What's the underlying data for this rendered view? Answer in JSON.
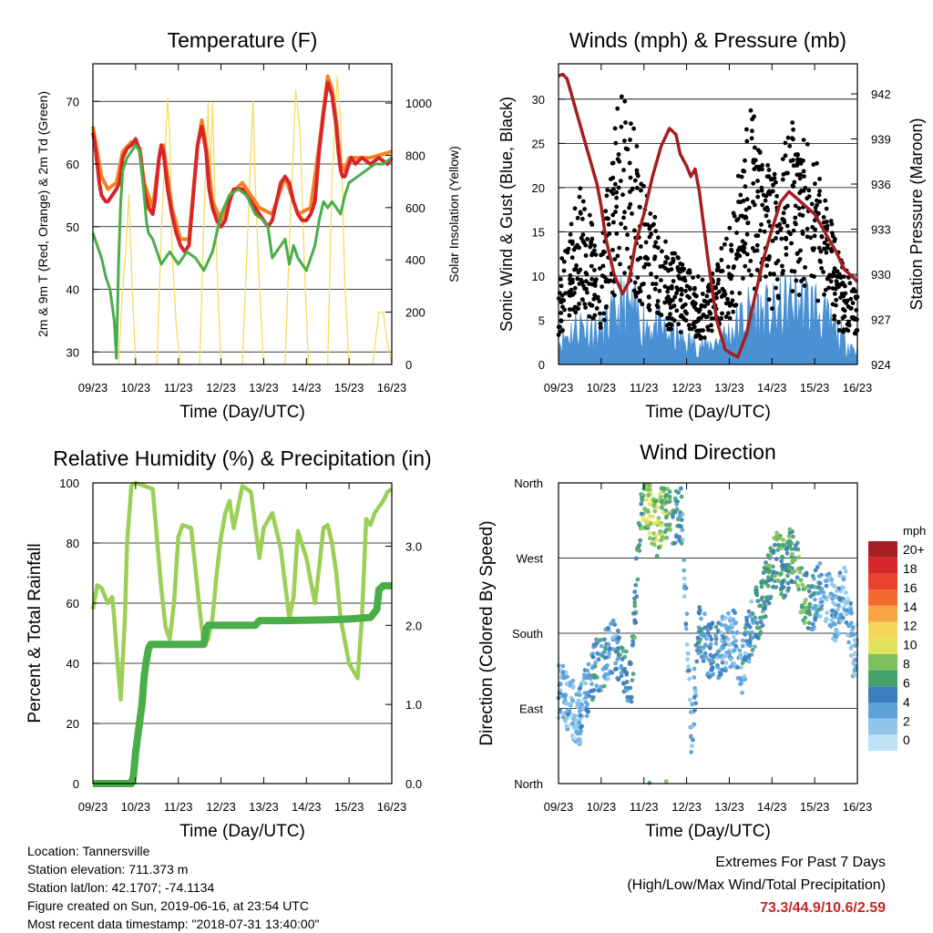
{
  "x_ticks": [
    "09/23",
    "10/23",
    "11/23",
    "12/23",
    "13/23",
    "14/23",
    "15/23",
    "16/23"
  ],
  "chart_data": [
    {
      "type": "line",
      "title": "Temperature (F)",
      "xlabel": "Time (Day/UTC)",
      "ylabel": "2m & 9m T (Red, Orange) & 2m Td (Green)",
      "y2label": "Solar Insolation (Yellow)",
      "ylim": [
        28,
        76
      ],
      "yticks": [
        30,
        40,
        50,
        60,
        70
      ],
      "y2lim": [
        0,
        1150
      ],
      "y2ticks": [
        0,
        200,
        400,
        600,
        800,
        1000
      ],
      "grid": true,
      "series": [
        {
          "name": "2m T",
          "color": "#d7262a",
          "axis": "left",
          "x": [
            0,
            0.05,
            0.1,
            0.15,
            0.2,
            0.25,
            0.3,
            0.35,
            0.45,
            0.55,
            0.62,
            0.7,
            0.8,
            0.9,
            1.0,
            1.1,
            1.2,
            1.3,
            1.4,
            1.45,
            1.55,
            1.6,
            1.65,
            1.75,
            1.85,
            1.95,
            2.05,
            2.15,
            2.25,
            2.35,
            2.45,
            2.55,
            2.65,
            2.72,
            2.8,
            2.9,
            3.0,
            3.1,
            3.2,
            3.3,
            3.5,
            3.7,
            3.9,
            4.1,
            4.2,
            4.3,
            4.4,
            4.5,
            4.6,
            4.7,
            4.8,
            4.9,
            5.0,
            5.1,
            5.2,
            5.3,
            5.4,
            5.5,
            5.6,
            5.7,
            5.75,
            5.8,
            5.85,
            5.9,
            5.95,
            6.0,
            6.05,
            6.15,
            6.3,
            6.5,
            6.7,
            6.9,
            7.0
          ],
          "y": [
            65,
            63,
            60,
            57,
            55,
            54.5,
            54,
            54,
            55,
            56,
            57,
            61,
            62.5,
            63,
            64,
            62,
            56,
            53,
            52,
            54,
            61,
            63,
            62,
            56,
            52,
            49,
            47,
            46,
            47,
            55,
            63,
            66,
            62,
            56,
            53,
            51,
            50,
            51,
            54,
            56,
            56,
            54,
            52,
            50,
            51,
            54,
            57,
            58,
            57,
            54,
            52,
            51,
            51,
            52,
            54,
            62,
            68,
            73,
            71,
            66,
            62,
            59,
            58,
            58,
            59,
            60,
            61,
            60,
            61,
            60,
            61,
            60,
            61
          ]
        },
        {
          "name": "9m T",
          "color": "#f7811f",
          "axis": "left",
          "x": [
            0,
            0.2,
            0.35,
            0.55,
            0.7,
            0.9,
            1.1,
            1.2,
            1.4,
            1.55,
            1.65,
            1.85,
            2.05,
            2.25,
            2.45,
            2.55,
            2.65,
            2.8,
            3.0,
            3.2,
            3.5,
            3.9,
            4.2,
            4.5,
            4.8,
            5.1,
            5.3,
            5.5,
            5.6,
            5.7,
            5.8,
            5.9,
            6.0,
            6.15,
            6.5,
            7.0
          ],
          "y": [
            66,
            58,
            56,
            57,
            62,
            63.5,
            62.5,
            57,
            53,
            61,
            63,
            53,
            48,
            48,
            63,
            67,
            63,
            54,
            51,
            55,
            57,
            53,
            52,
            58,
            52,
            53,
            63,
            74,
            72,
            67,
            60,
            59,
            61,
            61,
            61,
            62
          ]
        },
        {
          "name": "2m Td",
          "color": "#49ad48",
          "axis": "left",
          "x": [
            0,
            0.1,
            0.2,
            0.3,
            0.4,
            0.5,
            0.55,
            0.6,
            0.65,
            0.7,
            0.8,
            0.9,
            1.0,
            1.1,
            1.2,
            1.25,
            1.3,
            1.4,
            1.5,
            1.6,
            1.7,
            1.8,
            2.0,
            2.2,
            2.4,
            2.6,
            2.8,
            3.0,
            3.2,
            3.4,
            3.6,
            3.8,
            4.0,
            4.1,
            4.2,
            4.3,
            4.4,
            4.5,
            4.6,
            4.7,
            4.8,
            5.0,
            5.2,
            5.3,
            5.4,
            5.5,
            5.6,
            5.7,
            5.8,
            5.9,
            6.0,
            6.2,
            6.4,
            6.6,
            6.8,
            7.0
          ],
          "y": [
            49,
            47,
            45,
            42,
            40,
            35,
            29,
            44,
            54,
            59,
            61,
            62,
            63,
            62,
            55,
            51,
            49,
            48,
            46,
            44,
            45,
            46,
            44,
            46,
            45,
            43,
            46,
            52,
            55,
            56,
            55,
            52,
            51,
            50,
            45,
            46,
            47,
            48,
            44,
            47,
            45,
            43,
            47,
            51,
            54,
            53,
            54,
            53,
            52,
            55,
            57,
            58,
            59,
            60,
            60,
            61
          ]
        },
        {
          "name": "Solar Insolation",
          "color": "#f6dc62",
          "axis": "right",
          "x": [
            0,
            0.6,
            0.68,
            0.76,
            0.84,
            0.92,
            1.0,
            1.5,
            1.6,
            1.75,
            1.8,
            1.85,
            1.95,
            2.05,
            2.5,
            2.6,
            2.7,
            2.75,
            2.8,
            2.9,
            3.0,
            3.5,
            3.6,
            3.75,
            3.8,
            3.9,
            4.0,
            4.5,
            4.6,
            4.75,
            4.85,
            4.95,
            5.05,
            5.5,
            5.6,
            5.72,
            5.8,
            5.9,
            6.0,
            6.55,
            6.7,
            6.8,
            6.9,
            7.0
          ],
          "y": [
            0,
            0,
            250,
            420,
            650,
            300,
            0,
            0,
            500,
            1020,
            880,
            450,
            150,
            0,
            0,
            550,
            1000,
            700,
            1000,
            400,
            0,
            0,
            400,
            1010,
            700,
            300,
            0,
            0,
            450,
            1050,
            900,
            400,
            0,
            0,
            700,
            1100,
            950,
            300,
            0,
            0,
            200,
            200,
            80,
            0
          ]
        }
      ]
    },
    {
      "type": "scatter",
      "title": "Winds (mph) & Pressure (mb)",
      "xlabel": "Time (Day/UTC)",
      "ylabel": "Sonic Wind & Gust (Blue, Black)",
      "y2label": "Station Pressure (Maroon)",
      "ylim": [
        0,
        34
      ],
      "yticks": [
        0,
        5,
        10,
        15,
        20,
        25,
        30
      ],
      "y2lim": [
        924,
        944
      ],
      "y2ticks": [
        924,
        927,
        930,
        933,
        936,
        939,
        942
      ],
      "grid": true,
      "series": [
        {
          "name": "Station Pressure",
          "color": "#a41e22",
          "axis": "right",
          "style": "line",
          "x": [
            0,
            0.1,
            0.2,
            0.35,
            0.5,
            0.7,
            0.9,
            1.0,
            1.1,
            1.3,
            1.5,
            1.65,
            1.8,
            2.0,
            2.2,
            2.4,
            2.6,
            2.75,
            2.85,
            3.0,
            3.1,
            3.2,
            3.3,
            3.5,
            3.7,
            3.9,
            4.0,
            4.2,
            4.4,
            4.6,
            4.8,
            5.0,
            5.2,
            5.4,
            5.6,
            5.8,
            6.0,
            6.1,
            6.2,
            6.3,
            6.5,
            6.7,
            6.9,
            7.0
          ],
          "y": [
            943.2,
            943.3,
            943,
            941.5,
            940,
            938,
            936,
            934.5,
            932.5,
            930,
            928.7,
            929.5,
            932,
            934,
            936.5,
            938.5,
            939.7,
            939.3,
            938,
            937.2,
            936.5,
            937,
            935.5,
            931,
            927,
            925,
            924.8,
            924.5,
            926,
            928.5,
            931,
            933,
            934.8,
            935.5,
            935,
            934.5,
            934,
            933.5,
            933,
            932.5,
            931.5,
            930.3,
            929.8,
            929.5
          ]
        },
        {
          "name": "Sonic Wind",
          "color": "#4a90d2",
          "axis": "left",
          "style": "area",
          "x": [
            0,
            0.5,
            1.0,
            1.5,
            2.0,
            2.5,
            3.0,
            3.5,
            4.0,
            4.5,
            5.0,
            5.5,
            6.0,
            6.5,
            7.0
          ],
          "y": [
            2.5,
            4.5,
            3.5,
            6.5,
            5.0,
            3.5,
            2.5,
            2.0,
            3.5,
            6.0,
            5.5,
            7.0,
            6.5,
            3.5,
            1.5
          ]
        },
        {
          "name": "Gust",
          "color": "#000000",
          "axis": "left",
          "style": "points",
          "x": [
            0,
            0.5,
            1.0,
            1.5,
            2.0,
            2.5,
            3.0,
            3.5,
            4.0,
            4.5,
            5.0,
            5.5,
            6.0,
            6.5,
            7.0
          ],
          "y": [
            7,
            13,
            9,
            22,
            13,
            9,
            7,
            6,
            10,
            19,
            14,
            18,
            16,
            9,
            5
          ]
        }
      ]
    },
    {
      "type": "line",
      "title": "Relative Humidity (%) & Precipitation (in)",
      "xlabel": "Time (Day/UTC)",
      "ylabel": "Percent & Total Rainfall",
      "ylim": [
        0,
        100
      ],
      "yticks": [
        0,
        20,
        40,
        60,
        80,
        100
      ],
      "y2lim": [
        0,
        3.8
      ],
      "y2ticks": [
        "0.0",
        "1.0",
        "2.0",
        "3.0"
      ],
      "grid": true,
      "series": [
        {
          "name": "Relative Humidity",
          "color": "#9bcf55",
          "axis": "left",
          "x": [
            0,
            0.1,
            0.2,
            0.35,
            0.45,
            0.5,
            0.55,
            0.65,
            0.75,
            0.8,
            0.9,
            1.0,
            1.2,
            1.4,
            1.6,
            1.7,
            1.8,
            1.9,
            2.0,
            2.1,
            2.3,
            2.5,
            2.6,
            2.7,
            2.8,
            2.9,
            3.0,
            3.1,
            3.2,
            3.3,
            3.5,
            3.7,
            3.9,
            4.0,
            4.2,
            4.4,
            4.6,
            4.7,
            4.8,
            5.0,
            5.2,
            5.3,
            5.4,
            5.5,
            5.6,
            5.7,
            5.8,
            6.0,
            6.2,
            6.3,
            6.4,
            6.5,
            6.6,
            6.7,
            6.8,
            6.9,
            7.0
          ],
          "y": [
            58,
            66,
            65,
            60,
            62,
            55,
            45,
            28,
            55,
            80,
            99,
            100,
            99,
            98,
            65,
            52,
            48,
            60,
            82,
            86,
            85,
            58,
            46,
            48,
            55,
            70,
            82,
            90,
            94,
            85,
            99,
            97,
            75,
            85,
            90,
            78,
            55,
            62,
            84,
            75,
            60,
            72,
            85,
            86,
            80,
            70,
            55,
            40,
            35,
            55,
            88,
            86,
            90,
            92,
            94,
            97,
            98
          ]
        },
        {
          "name": "Total Rainfall",
          "color": "#49ad48",
          "axis": "right",
          "x": [
            0,
            0.9,
            0.95,
            1.0,
            1.05,
            1.1,
            1.15,
            1.2,
            1.25,
            1.3,
            1.35,
            1.45,
            2.6,
            2.65,
            2.7,
            3.8,
            3.9,
            4.0,
            4.5,
            5.5,
            6.0,
            6.5,
            6.65,
            6.7,
            6.8,
            7.0
          ],
          "y": [
            0,
            0,
            0.1,
            0.4,
            0.6,
            0.8,
            1.0,
            1.35,
            1.55,
            1.7,
            1.76,
            1.76,
            1.76,
            1.95,
            2.0,
            2.0,
            2.06,
            2.06,
            2.06,
            2.07,
            2.08,
            2.1,
            2.2,
            2.45,
            2.5,
            2.5
          ]
        }
      ]
    },
    {
      "type": "scatter",
      "title": "Wind Direction",
      "xlabel": "Time (Day/UTC)",
      "ylabel": "Direction (Colored By Speed)",
      "yticks": [
        "North",
        "East",
        "South",
        "West",
        "North"
      ],
      "ylim": [
        0,
        360
      ],
      "legend_title": "mph",
      "legend_labels": [
        "20+",
        "18",
        "16",
        "14",
        "12",
        "10",
        "8",
        "6",
        "4",
        "2",
        "0"
      ],
      "legend_colors": [
        "#a41e22",
        "#d7262a",
        "#e8432e",
        "#f26a30",
        "#f8a444",
        "#f5d65a",
        "#e1e35c",
        "#7cc15d",
        "#44a16b",
        "#3b7dbd",
        "#5ba3d9",
        "#8fc6ea",
        "#bfe3f6"
      ],
      "series": [
        {
          "name": "direction",
          "axis": "left",
          "x": [
            0.1,
            0.3,
            0.5,
            0.7,
            0.9,
            1.1,
            1.3,
            1.5,
            1.7,
            1.9,
            2.1,
            2.3,
            2.5,
            2.7,
            2.9,
            3.1,
            3.3,
            3.5,
            3.7,
            3.9,
            4.1,
            4.3,
            4.5,
            4.7,
            4.9,
            5.1,
            5.3,
            5.5,
            5.7,
            5.9,
            6.1,
            6.3,
            6.5,
            6.7,
            6.9
          ],
          "y": [
            110,
            90,
            80,
            120,
            140,
            150,
            170,
            140,
            110,
            320,
            330,
            305,
            330,
            320,
            320,
            50,
            190,
            160,
            155,
            170,
            175,
            140,
            185,
            210,
            240,
            270,
            255,
            280,
            230,
            210,
            230,
            220,
            200,
            240,
            160
          ],
          "speed": [
            3,
            2,
            3,
            4,
            5,
            4,
            4,
            5,
            5,
            7,
            9,
            9,
            8,
            6,
            4,
            2,
            5,
            4,
            4,
            3,
            3,
            4,
            4,
            6,
            6,
            7,
            6,
            7,
            7,
            6,
            4,
            3,
            3,
            3,
            2
          ]
        }
      ]
    }
  ],
  "info": {
    "location": "Location: Tannersville",
    "elevation": "Station elevation: 711.373 m",
    "latlon": "Station lat/lon: 42.1707; -74.1134",
    "created": "Figure created on Sun, 2019-06-16, at 23:54 UTC",
    "timestamp": "Most recent data timestamp: \"2018-07-31 13:40:00\""
  },
  "extremes": {
    "title": "Extremes For Past 7 Days",
    "subtitle": "(High/Low/Max Wind/Total Precipitation)",
    "values": "73.3/44.9/10.6/2.59"
  }
}
